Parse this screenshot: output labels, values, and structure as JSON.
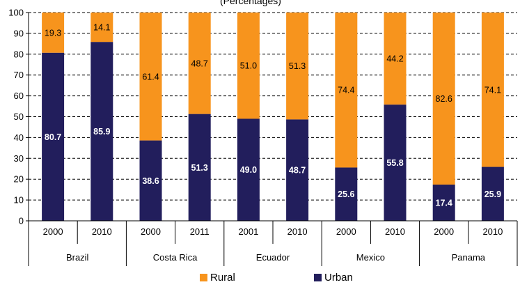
{
  "chart_data": {
    "type": "bar",
    "stacked": true,
    "title_fragment": "(Percentages)",
    "ylim": [
      0,
      100
    ],
    "yticks": [
      0,
      10,
      20,
      30,
      40,
      50,
      60,
      70,
      80,
      90,
      100
    ],
    "grid": "dashed horizontal",
    "groups": [
      {
        "country": "Brazil",
        "years": [
          "2000",
          "2010"
        ]
      },
      {
        "country": "Costa Rica",
        "years": [
          "2000",
          "2011"
        ]
      },
      {
        "country": "Ecuador",
        "years": [
          "2001",
          "2010"
        ]
      },
      {
        "country": "Mexico",
        "years": [
          "2000",
          "2010"
        ]
      },
      {
        "country": "Panama",
        "years": [
          "2000",
          "2010"
        ]
      }
    ],
    "series": [
      {
        "name": "Urban",
        "color": "#221e5c",
        "values": [
          80.7,
          85.9,
          38.6,
          51.3,
          49.0,
          48.7,
          25.6,
          55.8,
          17.4,
          25.9
        ],
        "labels": [
          "80.7",
          "85.9",
          "38.6",
          "51.3",
          "49.0",
          "48.7",
          "25.6",
          "55.8",
          "17.4",
          "25.9"
        ]
      },
      {
        "name": "Rural",
        "color": "#f7941d",
        "values": [
          19.3,
          14.1,
          61.4,
          48.7,
          51.0,
          51.3,
          74.4,
          44.2,
          82.6,
          74.1
        ],
        "labels": [
          "19.3",
          "14.1",
          "61.4",
          "48.7",
          "51.0",
          "51.3",
          "74.4",
          "44.2",
          "82.6",
          "74.1"
        ]
      }
    ],
    "legend": {
      "position": "bottom",
      "order": [
        "Rural",
        "Urban"
      ]
    }
  }
}
